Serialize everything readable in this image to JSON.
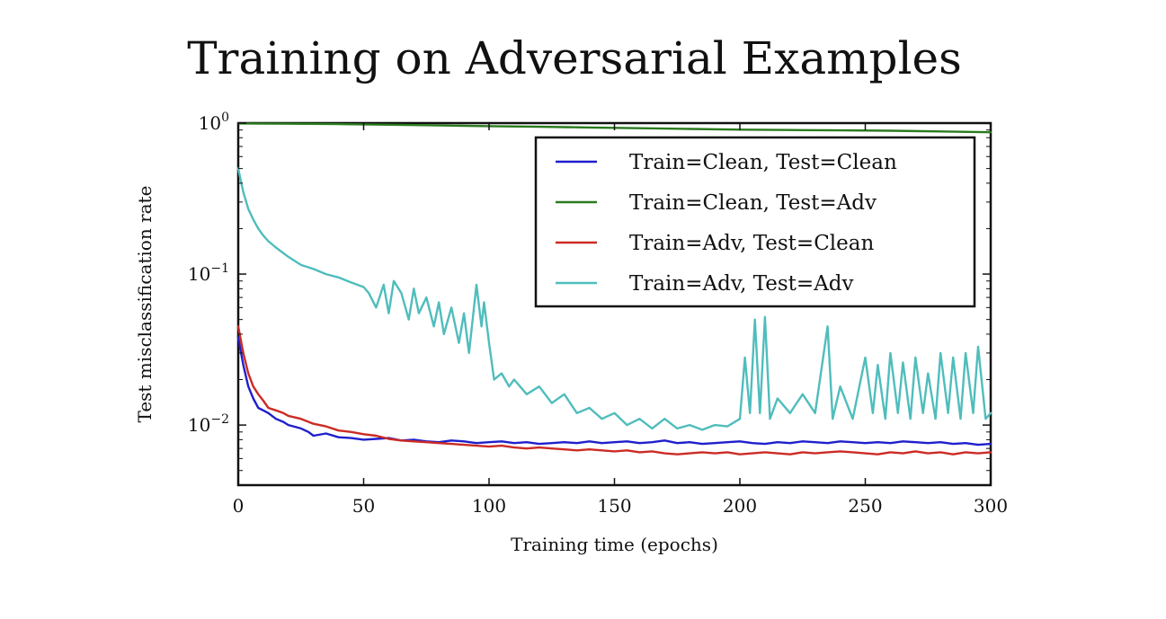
{
  "slide": {
    "title": "Training on Adversarial Examples"
  },
  "chart_data": {
    "type": "line",
    "title": "Training on Adversarial Examples",
    "xlabel": "Training time (epochs)",
    "ylabel": "Test misclassification rate",
    "xlim": [
      0,
      300
    ],
    "ylim": [
      0.004,
      1.0
    ],
    "yscale": "log",
    "grid": false,
    "legend_position": "top-right",
    "x_ticks": [
      0,
      50,
      100,
      150,
      200,
      250,
      300
    ],
    "x_tick_labels": [
      "0",
      "50",
      "100",
      "150",
      "200",
      "250",
      "300"
    ],
    "y_ticks": [
      {
        "value": 1.0,
        "base": "10",
        "exp": "0"
      },
      {
        "value": 0.1,
        "base": "10",
        "exp": "−1"
      },
      {
        "value": 0.01,
        "base": "10",
        "exp": "−2"
      }
    ],
    "series": [
      {
        "name": "Train=Clean, Test=Clean",
        "color": "#1f1fcc",
        "points": [
          [
            0,
            0.038
          ],
          [
            2,
            0.025
          ],
          [
            4,
            0.018
          ],
          [
            6,
            0.015
          ],
          [
            8,
            0.013
          ],
          [
            10,
            0.0125
          ],
          [
            12,
            0.012
          ],
          [
            15,
            0.011
          ],
          [
            18,
            0.0105
          ],
          [
            20,
            0.01
          ],
          [
            25,
            0.0095
          ],
          [
            28,
            0.009
          ],
          [
            30,
            0.0085
          ],
          [
            35,
            0.0088
          ],
          [
            40,
            0.0083
          ],
          [
            45,
            0.0082
          ],
          [
            50,
            0.008
          ],
          [
            55,
            0.0081
          ],
          [
            60,
            0.0082
          ],
          [
            65,
            0.0079
          ],
          [
            70,
            0.008
          ],
          [
            75,
            0.0078
          ],
          [
            80,
            0.0077
          ],
          [
            85,
            0.0079
          ],
          [
            90,
            0.0078
          ],
          [
            95,
            0.0076
          ],
          [
            100,
            0.0077
          ],
          [
            105,
            0.0078
          ],
          [
            110,
            0.0076
          ],
          [
            115,
            0.0077
          ],
          [
            120,
            0.0075
          ],
          [
            125,
            0.0076
          ],
          [
            130,
            0.0077
          ],
          [
            135,
            0.0076
          ],
          [
            140,
            0.0078
          ],
          [
            145,
            0.0076
          ],
          [
            150,
            0.0077
          ],
          [
            155,
            0.0078
          ],
          [
            160,
            0.0076
          ],
          [
            165,
            0.0077
          ],
          [
            170,
            0.0079
          ],
          [
            175,
            0.0076
          ],
          [
            180,
            0.0077
          ],
          [
            185,
            0.0075
          ],
          [
            190,
            0.0076
          ],
          [
            195,
            0.0077
          ],
          [
            200,
            0.0078
          ],
          [
            205,
            0.0076
          ],
          [
            210,
            0.0075
          ],
          [
            215,
            0.0077
          ],
          [
            220,
            0.0076
          ],
          [
            225,
            0.0078
          ],
          [
            230,
            0.0077
          ],
          [
            235,
            0.0076
          ],
          [
            240,
            0.0078
          ],
          [
            245,
            0.0077
          ],
          [
            250,
            0.0076
          ],
          [
            255,
            0.0077
          ],
          [
            260,
            0.0076
          ],
          [
            265,
            0.0078
          ],
          [
            270,
            0.0077
          ],
          [
            275,
            0.0076
          ],
          [
            280,
            0.0077
          ],
          [
            285,
            0.0075
          ],
          [
            290,
            0.0076
          ],
          [
            295,
            0.0074
          ],
          [
            300,
            0.0075
          ]
        ]
      },
      {
        "name": "Train=Clean, Test=Adv",
        "color": "#2a7a1e",
        "points": [
          [
            0,
            0.995
          ],
          [
            20,
            0.99
          ],
          [
            40,
            0.985
          ],
          [
            60,
            0.975
          ],
          [
            80,
            0.965
          ],
          [
            100,
            0.955
          ],
          [
            120,
            0.945
          ],
          [
            140,
            0.935
          ],
          [
            160,
            0.925
          ],
          [
            180,
            0.915
          ],
          [
            200,
            0.905
          ],
          [
            220,
            0.9
          ],
          [
            240,
            0.895
          ],
          [
            260,
            0.89
          ],
          [
            280,
            0.88
          ],
          [
            300,
            0.87
          ]
        ]
      },
      {
        "name": "Train=Adv, Test=Clean",
        "color": "#cc2b24",
        "points": [
          [
            0,
            0.045
          ],
          [
            2,
            0.03
          ],
          [
            4,
            0.022
          ],
          [
            6,
            0.018
          ],
          [
            8,
            0.016
          ],
          [
            10,
            0.0145
          ],
          [
            12,
            0.013
          ],
          [
            15,
            0.0125
          ],
          [
            18,
            0.012
          ],
          [
            20,
            0.0115
          ],
          [
            25,
            0.011
          ],
          [
            30,
            0.0102
          ],
          [
            35,
            0.0098
          ],
          [
            40,
            0.0092
          ],
          [
            45,
            0.009
          ],
          [
            50,
            0.0087
          ],
          [
            55,
            0.0085
          ],
          [
            60,
            0.0081
          ],
          [
            65,
            0.0079
          ],
          [
            70,
            0.0078
          ],
          [
            75,
            0.0077
          ],
          [
            80,
            0.0076
          ],
          [
            85,
            0.0075
          ],
          [
            90,
            0.0074
          ],
          [
            95,
            0.0073
          ],
          [
            100,
            0.0072
          ],
          [
            105,
            0.0073
          ],
          [
            110,
            0.0071
          ],
          [
            115,
            0.007
          ],
          [
            120,
            0.0071
          ],
          [
            125,
            0.007
          ],
          [
            130,
            0.0069
          ],
          [
            135,
            0.0068
          ],
          [
            140,
            0.0069
          ],
          [
            145,
            0.0068
          ],
          [
            150,
            0.0067
          ],
          [
            155,
            0.0068
          ],
          [
            160,
            0.0066
          ],
          [
            165,
            0.0067
          ],
          [
            170,
            0.0065
          ],
          [
            175,
            0.0064
          ],
          [
            180,
            0.0065
          ],
          [
            185,
            0.0066
          ],
          [
            190,
            0.0065
          ],
          [
            195,
            0.0066
          ],
          [
            200,
            0.0064
          ],
          [
            205,
            0.0065
          ],
          [
            210,
            0.0066
          ],
          [
            215,
            0.0065
          ],
          [
            220,
            0.0064
          ],
          [
            225,
            0.0066
          ],
          [
            230,
            0.0065
          ],
          [
            235,
            0.0066
          ],
          [
            240,
            0.0067
          ],
          [
            245,
            0.0066
          ],
          [
            250,
            0.0065
          ],
          [
            255,
            0.0064
          ],
          [
            260,
            0.0066
          ],
          [
            265,
            0.0065
          ],
          [
            270,
            0.0067
          ],
          [
            275,
            0.0065
          ],
          [
            280,
            0.0066
          ],
          [
            285,
            0.0064
          ],
          [
            290,
            0.0066
          ],
          [
            295,
            0.0065
          ],
          [
            300,
            0.0066
          ]
        ]
      },
      {
        "name": "Train=Adv, Test=Adv",
        "color": "#4fbdbc",
        "points": [
          [
            0,
            0.5
          ],
          [
            2,
            0.35
          ],
          [
            4,
            0.27
          ],
          [
            6,
            0.23
          ],
          [
            8,
            0.2
          ],
          [
            10,
            0.18
          ],
          [
            12,
            0.165
          ],
          [
            15,
            0.15
          ],
          [
            20,
            0.13
          ],
          [
            25,
            0.115
          ],
          [
            30,
            0.108
          ],
          [
            35,
            0.1
          ],
          [
            40,
            0.095
          ],
          [
            45,
            0.088
          ],
          [
            50,
            0.082
          ],
          [
            52,
            0.075
          ],
          [
            55,
            0.06
          ],
          [
            58,
            0.085
          ],
          [
            60,
            0.055
          ],
          [
            62,
            0.09
          ],
          [
            65,
            0.075
          ],
          [
            68,
            0.05
          ],
          [
            70,
            0.08
          ],
          [
            72,
            0.055
          ],
          [
            75,
            0.07
          ],
          [
            78,
            0.045
          ],
          [
            80,
            0.065
          ],
          [
            82,
            0.04
          ],
          [
            85,
            0.06
          ],
          [
            88,
            0.035
          ],
          [
            90,
            0.055
          ],
          [
            92,
            0.03
          ],
          [
            95,
            0.085
          ],
          [
            97,
            0.045
          ],
          [
            98,
            0.065
          ],
          [
            100,
            0.035
          ],
          [
            102,
            0.02
          ],
          [
            105,
            0.022
          ],
          [
            108,
            0.018
          ],
          [
            110,
            0.02
          ],
          [
            115,
            0.016
          ],
          [
            120,
            0.018
          ],
          [
            125,
            0.014
          ],
          [
            130,
            0.016
          ],
          [
            135,
            0.012
          ],
          [
            140,
            0.013
          ],
          [
            145,
            0.011
          ],
          [
            150,
            0.012
          ],
          [
            155,
            0.01
          ],
          [
            160,
            0.011
          ],
          [
            165,
            0.0095
          ],
          [
            170,
            0.011
          ],
          [
            175,
            0.0095
          ],
          [
            180,
            0.01
          ],
          [
            185,
            0.0093
          ],
          [
            190,
            0.01
          ],
          [
            195,
            0.0098
          ],
          [
            200,
            0.011
          ],
          [
            202,
            0.028
          ],
          [
            204,
            0.012
          ],
          [
            206,
            0.05
          ],
          [
            208,
            0.012
          ],
          [
            210,
            0.052
          ],
          [
            212,
            0.011
          ],
          [
            215,
            0.015
          ],
          [
            220,
            0.012
          ],
          [
            225,
            0.016
          ],
          [
            230,
            0.012
          ],
          [
            235,
            0.045
          ],
          [
            237,
            0.011
          ],
          [
            240,
            0.018
          ],
          [
            245,
            0.011
          ],
          [
            250,
            0.028
          ],
          [
            253,
            0.012
          ],
          [
            255,
            0.025
          ],
          [
            258,
            0.011
          ],
          [
            260,
            0.03
          ],
          [
            263,
            0.012
          ],
          [
            265,
            0.026
          ],
          [
            268,
            0.011
          ],
          [
            270,
            0.028
          ],
          [
            273,
            0.012
          ],
          [
            275,
            0.022
          ],
          [
            278,
            0.011
          ],
          [
            280,
            0.03
          ],
          [
            283,
            0.012
          ],
          [
            285,
            0.028
          ],
          [
            288,
            0.011
          ],
          [
            290,
            0.03
          ],
          [
            293,
            0.012
          ],
          [
            295,
            0.033
          ],
          [
            298,
            0.011
          ],
          [
            300,
            0.012
          ]
        ]
      }
    ]
  }
}
